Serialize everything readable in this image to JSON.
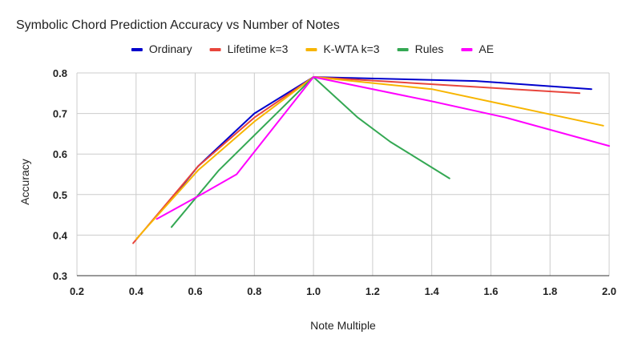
{
  "chart_data": {
    "type": "line",
    "title": "Symbolic Chord Prediction Accuracy vs Number of Notes",
    "xlabel": "Note Multiple",
    "ylabel": "Accuracy",
    "xlim": [
      0.2,
      2.0
    ],
    "ylim": [
      0.3,
      0.8
    ],
    "xticks": [
      "0.2",
      "0.4",
      "0.6",
      "0.8",
      "1.0",
      "1.2",
      "1.4",
      "1.6",
      "1.8",
      "2.0"
    ],
    "yticks": [
      "0.3",
      "0.4",
      "0.5",
      "0.6",
      "0.7",
      "0.8"
    ],
    "grid": true,
    "legend_position": "top",
    "series": [
      {
        "name": "Ordinary",
        "color": "#0000cc",
        "points": [
          [
            0.51,
            0.48
          ],
          [
            0.61,
            0.57
          ],
          [
            0.8,
            0.7
          ],
          [
            1.0,
            0.79
          ],
          [
            1.55,
            0.78
          ],
          [
            1.94,
            0.76
          ]
        ]
      },
      {
        "name": "Lifetime k=3",
        "color": "#e8453c",
        "points": [
          [
            0.39,
            0.38
          ],
          [
            0.61,
            0.57
          ],
          [
            0.8,
            0.69
          ],
          [
            1.0,
            0.79
          ],
          [
            1.9,
            0.75
          ]
        ]
      },
      {
        "name": "K-WTA k=3",
        "color": "#f7b500",
        "points": [
          [
            0.4,
            0.39
          ],
          [
            0.61,
            0.56
          ],
          [
            0.8,
            0.68
          ],
          [
            1.0,
            0.79
          ],
          [
            1.4,
            0.76
          ],
          [
            1.98,
            0.67
          ]
        ]
      },
      {
        "name": "Rules",
        "color": "#34a853",
        "points": [
          [
            0.52,
            0.42
          ],
          [
            0.68,
            0.56
          ],
          [
            1.0,
            0.79
          ],
          [
            1.15,
            0.69
          ],
          [
            1.26,
            0.63
          ],
          [
            1.46,
            0.54
          ]
        ]
      },
      {
        "name": "AE",
        "color": "#ff00ff",
        "points": [
          [
            0.47,
            0.44
          ],
          [
            0.62,
            0.5
          ],
          [
            0.74,
            0.55
          ],
          [
            1.0,
            0.79
          ],
          [
            1.4,
            0.73
          ],
          [
            1.65,
            0.69
          ],
          [
            2.0,
            0.62
          ]
        ]
      }
    ]
  }
}
